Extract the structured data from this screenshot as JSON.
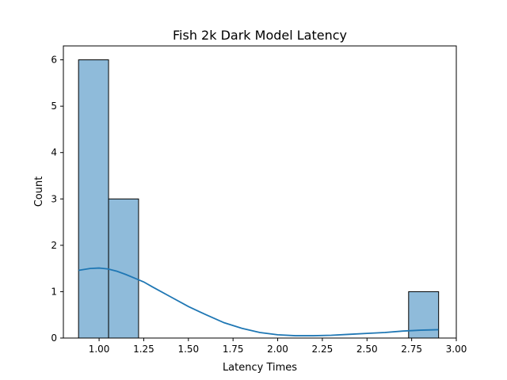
{
  "chart_data": {
    "type": "bar",
    "title": "Fish 2k Dark Model Latency",
    "xlabel": "Latency Times",
    "ylabel": "Count",
    "xlim": [
      0.8,
      3.0
    ],
    "ylim": [
      0,
      6.3
    ],
    "xticks": [
      "1.00",
      "1.25",
      "1.50",
      "1.75",
      "2.00",
      "2.25",
      "2.50",
      "2.75",
      "3.00"
    ],
    "yticks": [
      "0",
      "1",
      "2",
      "3",
      "4",
      "5",
      "6"
    ],
    "grid": false,
    "bins": [
      {
        "x0": 0.885,
        "x1": 1.053,
        "count": 6
      },
      {
        "x0": 1.053,
        "x1": 1.221,
        "count": 3
      },
      {
        "x0": 1.221,
        "x1": 1.389,
        "count": 0
      },
      {
        "x0": 1.389,
        "x1": 1.557,
        "count": 0
      },
      {
        "x0": 1.557,
        "x1": 1.725,
        "count": 0
      },
      {
        "x0": 1.725,
        "x1": 1.893,
        "count": 0
      },
      {
        "x0": 1.893,
        "x1": 2.061,
        "count": 0
      },
      {
        "x0": 2.061,
        "x1": 2.229,
        "count": 0
      },
      {
        "x0": 2.229,
        "x1": 2.397,
        "count": 0
      },
      {
        "x0": 2.397,
        "x1": 2.565,
        "count": 0
      },
      {
        "x0": 2.565,
        "x1": 2.733,
        "count": 0
      },
      {
        "x0": 2.733,
        "x1": 2.901,
        "count": 1
      }
    ],
    "kde": {
      "x": [
        0.885,
        0.95,
        1.0,
        1.05,
        1.1,
        1.15,
        1.2,
        1.25,
        1.3,
        1.4,
        1.5,
        1.6,
        1.7,
        1.8,
        1.9,
        2.0,
        2.1,
        2.2,
        2.3,
        2.4,
        2.5,
        2.6,
        2.7,
        2.8,
        2.9
      ],
      "y": [
        1.46,
        1.5,
        1.51,
        1.49,
        1.44,
        1.37,
        1.29,
        1.21,
        1.1,
        0.89,
        0.68,
        0.5,
        0.33,
        0.21,
        0.12,
        0.07,
        0.05,
        0.05,
        0.06,
        0.08,
        0.1,
        0.12,
        0.15,
        0.17,
        0.18
      ]
    },
    "colors": {
      "bar_fill": "#8fbbda",
      "bar_edge": "#000000",
      "kde_line": "#1f77b4"
    }
  }
}
